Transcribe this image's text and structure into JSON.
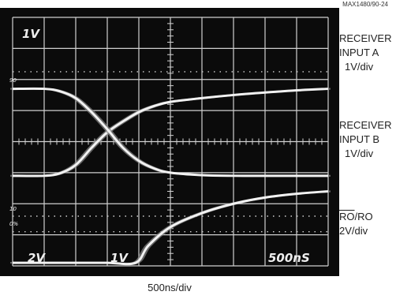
{
  "figure_id": "MAX1480/90-24",
  "time_scale": "500ns/div",
  "colors": {
    "screen": "#0b0b0b",
    "grid": "#d0d0d0",
    "trace": "#f2f2f2",
    "trace_ghost": "#8a8a8a",
    "screen_text": "#eeeeee"
  },
  "chart_data": {
    "type": "line",
    "grid": true,
    "divisions": {
      "x": 10,
      "y": 8
    },
    "screen_text": {
      "ch_a_scale": "1V",
      "ch_ro_scale": "2V",
      "ch_b_scale": "1V",
      "time_base": "500nS"
    },
    "marker_text": {
      "top_marker": "90",
      "ref_100": "10",
      "ref_0": "0%"
    },
    "series": [
      {
        "side_label": [
          "RECEIVER",
          "INPUT A",
          "1V/div"
        ],
        "x": [
          0,
          1,
          1.5,
          2,
          2.5,
          3,
          3.5,
          4,
          4.5,
          5,
          6,
          7,
          8,
          9,
          10
        ],
        "y": [
          5.1,
          5.1,
          5.02,
          4.75,
          4.2,
          3.7,
          3.35,
          3.05,
          2.85,
          2.72,
          2.6,
          2.5,
          2.42,
          2.35,
          2.3
        ]
      },
      {
        "side_label": [
          "RECEIVER",
          "INPUT B",
          "1V/div"
        ],
        "x": [
          0,
          1,
          1.5,
          2,
          2.5,
          3,
          3.5,
          4,
          4.5,
          5,
          6,
          7,
          8,
          9,
          10
        ],
        "y": [
          2.3,
          2.3,
          2.38,
          2.6,
          3.05,
          3.6,
          4.2,
          4.62,
          4.87,
          5.0,
          5.08,
          5.1,
          5.1,
          5.1,
          5.1
        ]
      },
      {
        "side_label": [
          "RO/RO",
          "2V/div"
        ],
        "x": [
          0,
          1,
          2,
          3,
          3.9,
          4.3,
          5,
          6,
          7,
          8,
          9,
          10
        ],
        "y": [
          7.9,
          7.9,
          7.9,
          7.9,
          7.9,
          7.35,
          6.75,
          6.3,
          6.0,
          5.8,
          5.68,
          5.6
        ]
      }
    ]
  }
}
